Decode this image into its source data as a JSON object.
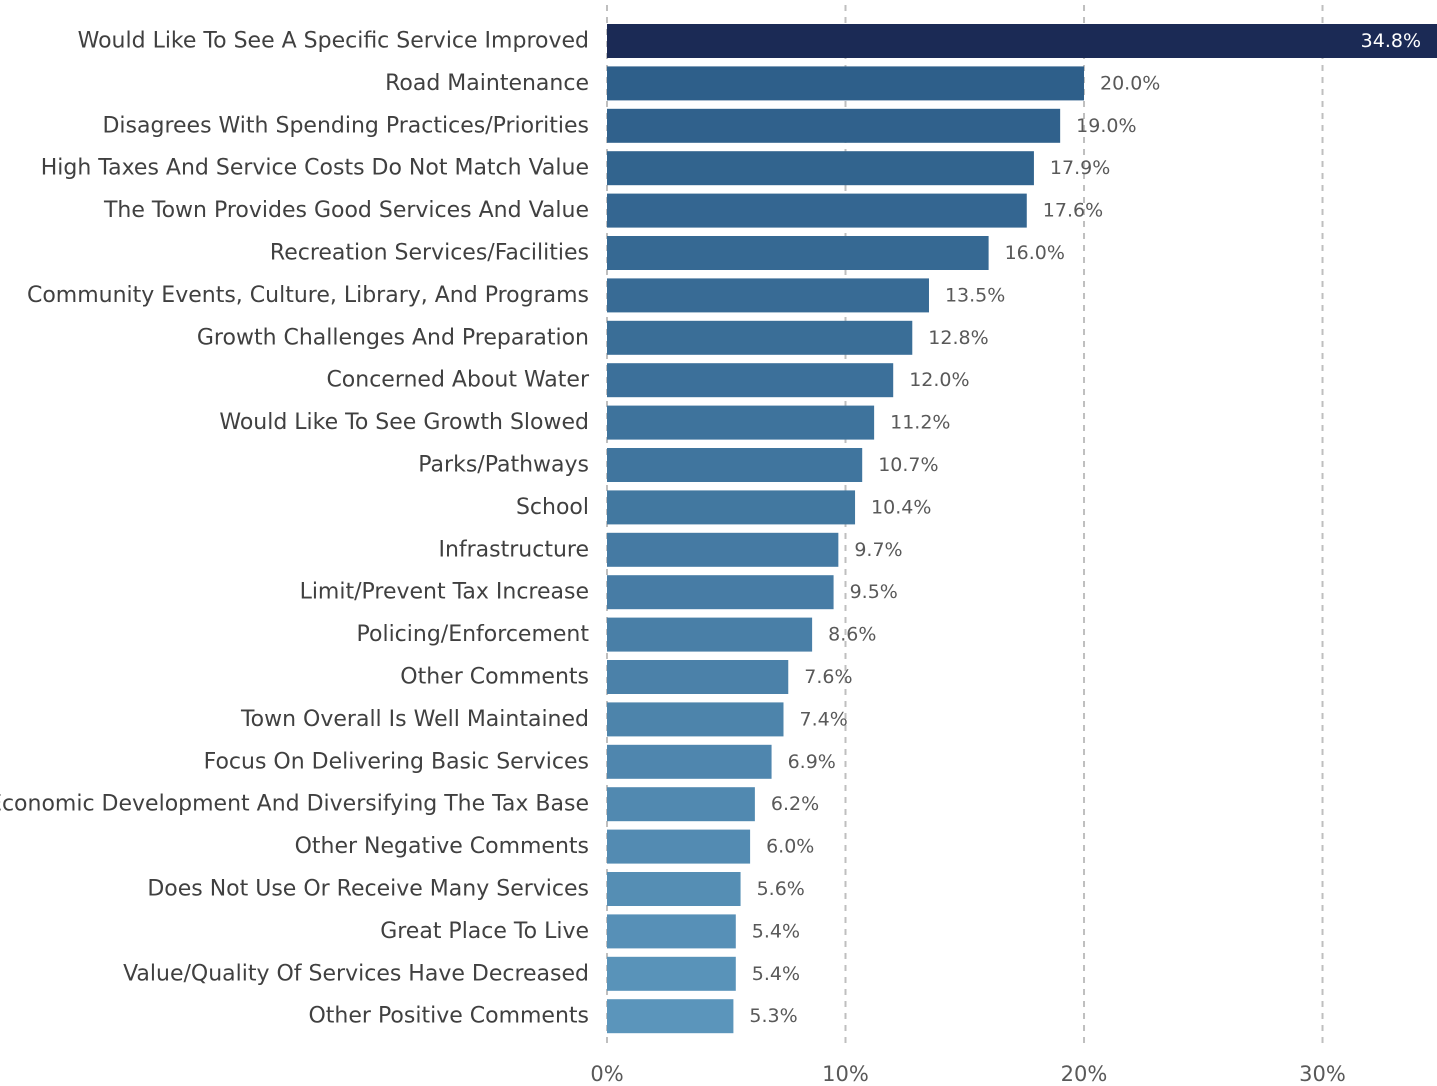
{
  "chart_data": {
    "type": "bar",
    "orientation": "horizontal",
    "title": "",
    "xlabel": "",
    "ylabel": "",
    "xlim": [
      0,
      34.8
    ],
    "ticks": [
      "0%",
      "10%",
      "20%",
      "30%"
    ],
    "tick_values": [
      0,
      10,
      20,
      30
    ],
    "grid": true,
    "value_format": "{v}%",
    "highlight_color": "#1B2A55",
    "bar_color_start": "#2E5F8A",
    "bar_color_end": "#5B95BB",
    "categories": [
      "Would Like To See A Specific Service Improved",
      "Road Maintenance",
      "Disagrees With Spending Practices/Priorities",
      "High Taxes And Service Costs Do Not Match Value",
      "The Town Provides Good Services And Value",
      "Recreation Services/Facilities",
      "Community Events, Culture, Library, And Programs",
      "Growth Challenges And Preparation",
      "Concerned About Water",
      "Would Like To See Growth Slowed",
      "Parks/Pathways",
      "School",
      "Infrastructure",
      "Limit/Prevent Tax Increase",
      "Policing/Enforcement",
      "Other Comments",
      "Town Overall Is Well Maintained",
      "Focus On Delivering Basic Services",
      "Economic Development And Diversifying The Tax Base",
      "Other Negative Comments",
      "Does Not Use Or Receive Many Services",
      "Great Place To Live",
      "Value/Quality Of Services Have Decreased",
      "Other Positive Comments"
    ],
    "values": [
      34.8,
      20.0,
      19.0,
      17.9,
      17.6,
      16.0,
      13.5,
      12.8,
      12.0,
      11.2,
      10.7,
      10.4,
      9.7,
      9.5,
      8.6,
      7.6,
      7.4,
      6.9,
      6.2,
      6.0,
      5.6,
      5.4,
      5.4,
      5.3
    ],
    "value_labels": [
      "34.8%",
      "20.0%",
      "19.0%",
      "17.9%",
      "17.6%",
      "16.0%",
      "13.5%",
      "12.8%",
      "12.0%",
      "11.2%",
      "10.7%",
      "10.4%",
      "9.7%",
      "9.5%",
      "8.6%",
      "7.6%",
      "7.4%",
      "6.9%",
      "6.2%",
      "6.0%",
      "5.6%",
      "5.4%",
      "5.4%",
      "5.3%"
    ]
  }
}
